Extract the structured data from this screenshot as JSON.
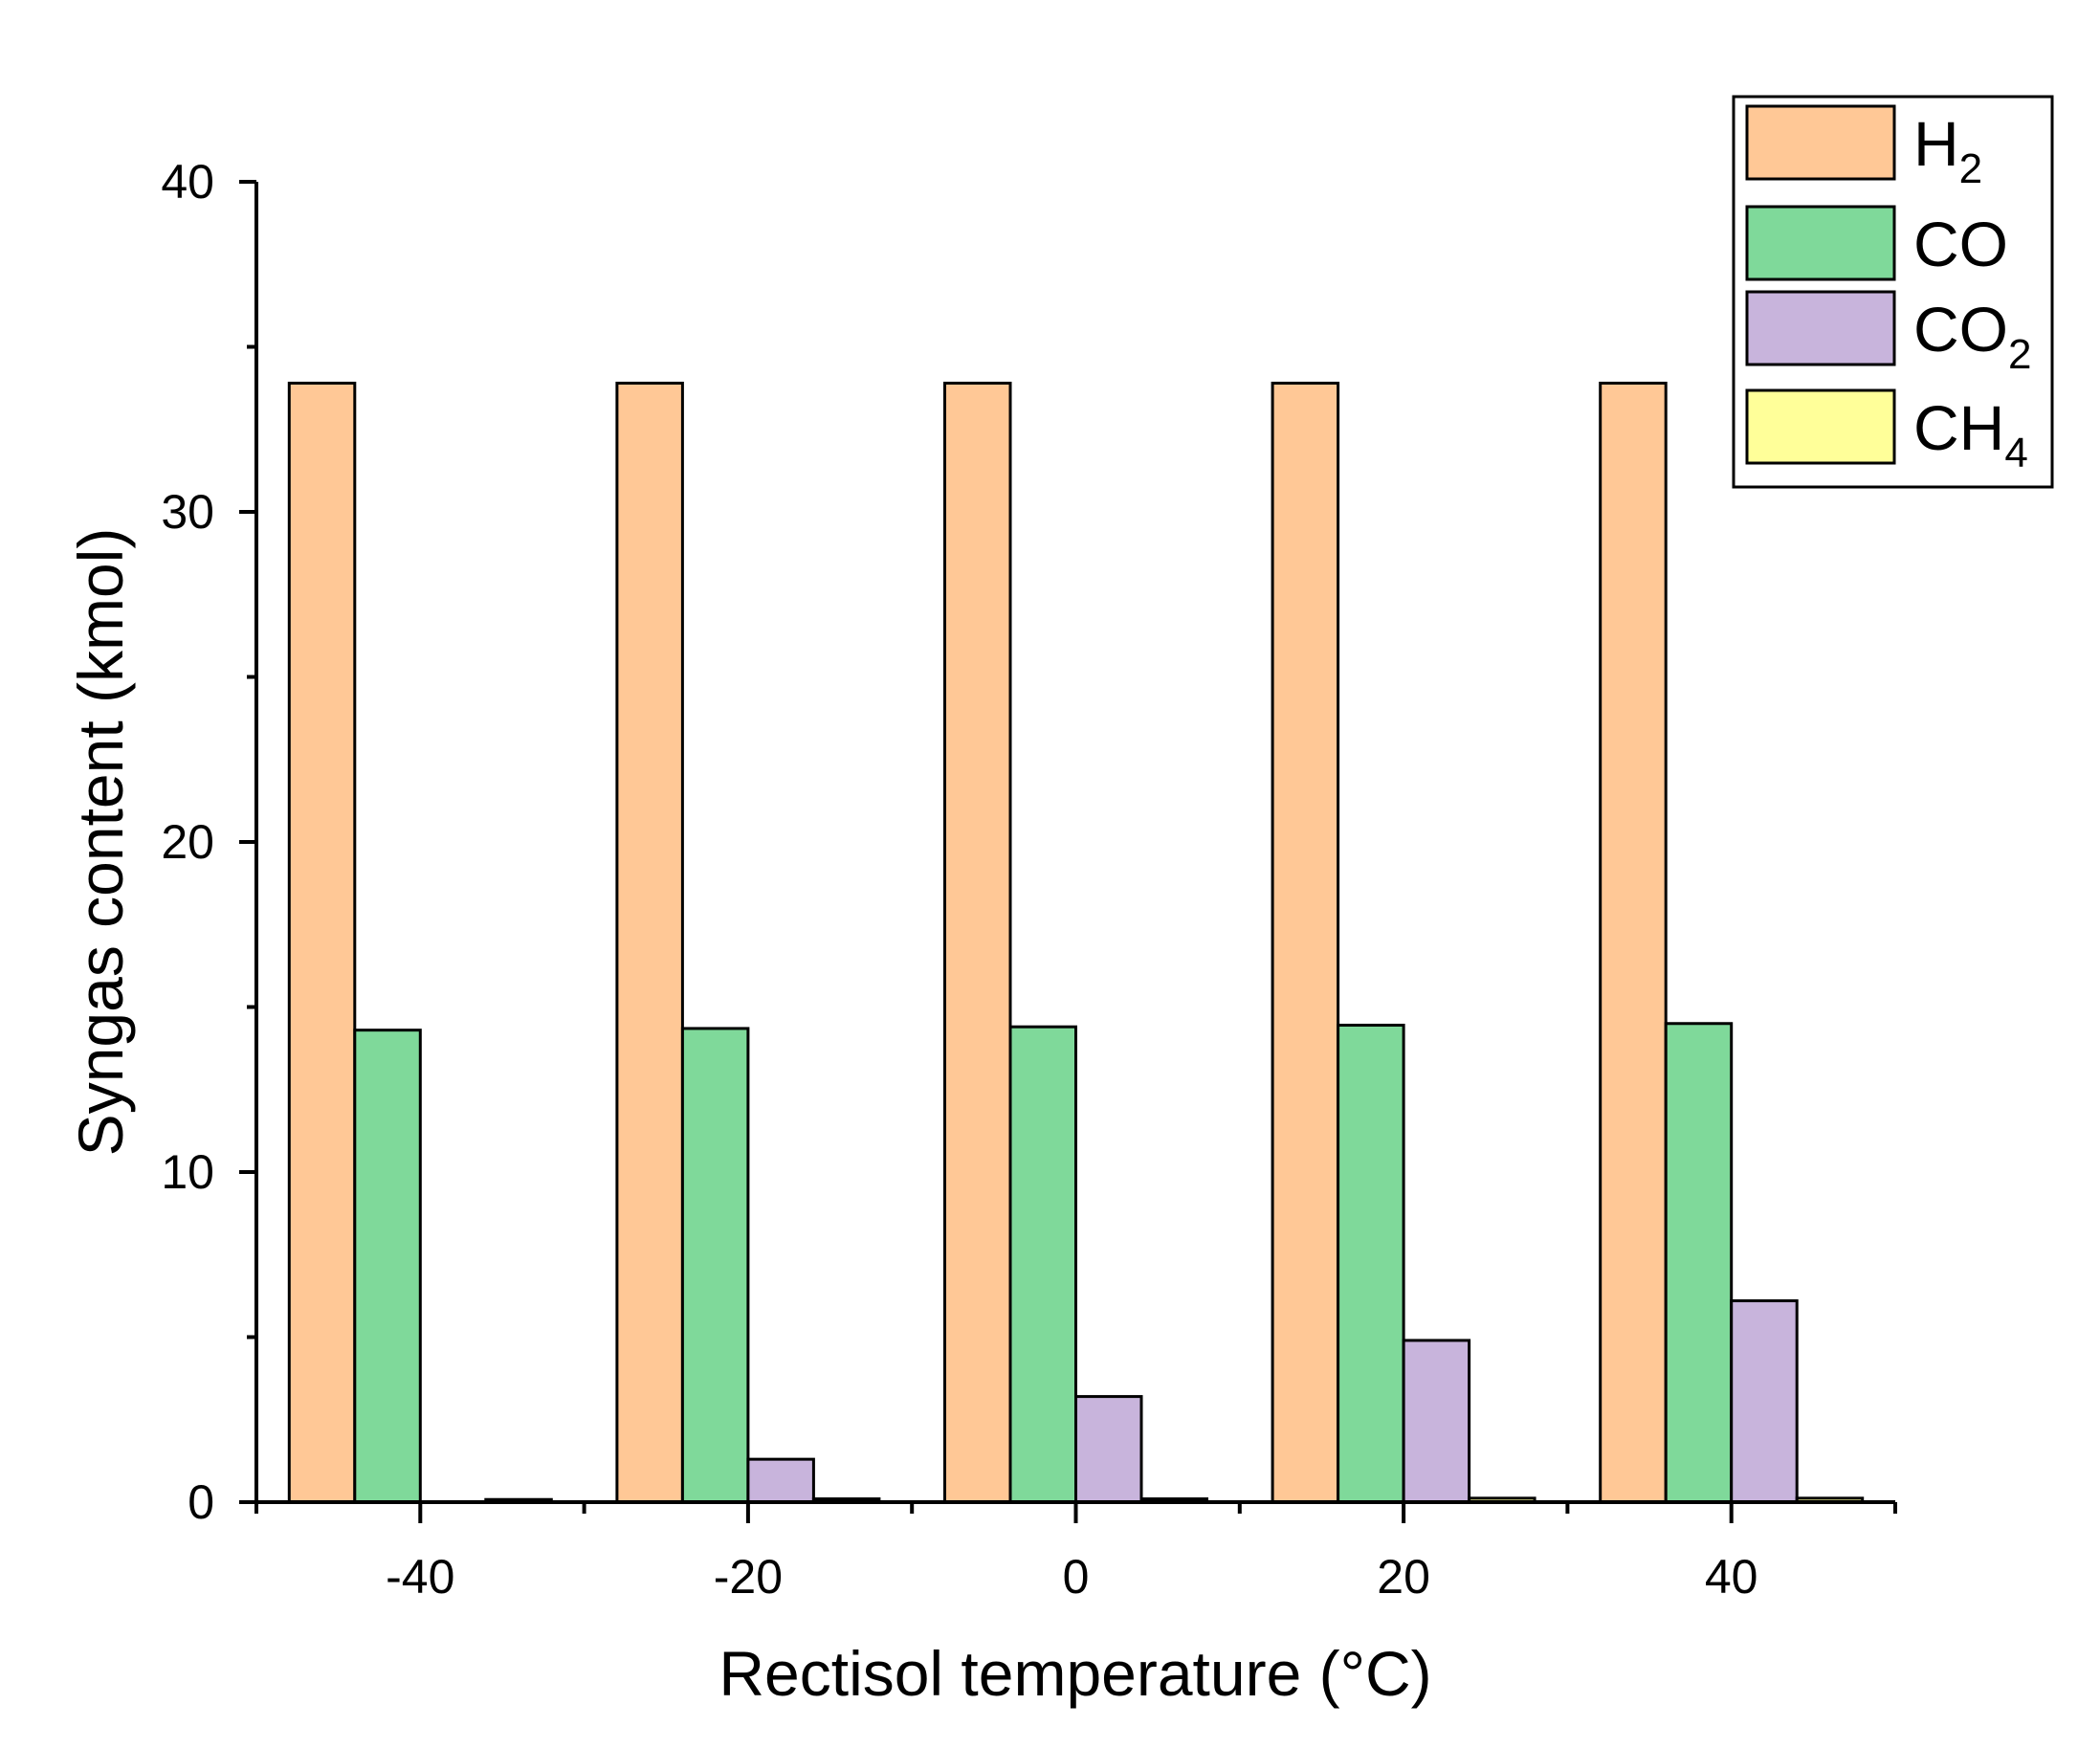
{
  "chart_data": {
    "type": "bar",
    "title": "",
    "xlabel": "Rectisol temperature (°C)",
    "ylabel": "Syngas content (kmol)",
    "categories": [
      "-40",
      "-20",
      "0",
      "20",
      "40"
    ],
    "ylim": [
      0,
      40
    ],
    "yticks": [
      "0",
      "10",
      "20",
      "30",
      "40"
    ],
    "xticks": [
      "-40",
      "-20",
      "0",
      "20",
      "40"
    ],
    "legend_position": "top-right",
    "grid": false,
    "series": [
      {
        "name": "H2",
        "label": "H",
        "subscript": "2",
        "color": "#FFC896",
        "values": [
          33.9,
          33.9,
          33.9,
          33.9,
          33.9
        ]
      },
      {
        "name": "CO",
        "label": "CO",
        "subscript": "",
        "color": "#7FD99A",
        "values": [
          14.3,
          14.35,
          14.4,
          14.45,
          14.5
        ]
      },
      {
        "name": "CO2",
        "label": "CO",
        "subscript": "2",
        "color": "#C8B4DC",
        "values": [
          0.0,
          1.3,
          3.2,
          4.9,
          6.1
        ]
      },
      {
        "name": "CH4",
        "label": "CH",
        "subscript": "4",
        "color": "#FFFF99",
        "values": [
          0.08,
          0.1,
          0.1,
          0.12,
          0.12
        ]
      }
    ]
  }
}
